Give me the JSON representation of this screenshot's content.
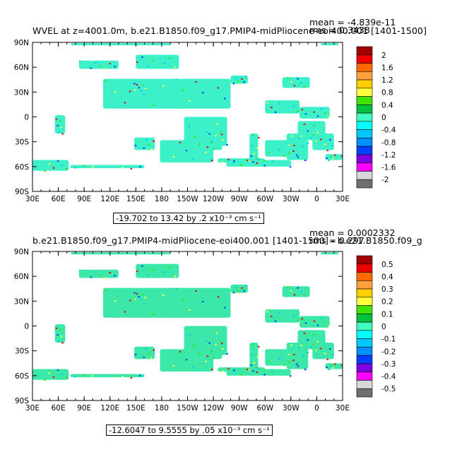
{
  "chart_data": [
    {
      "type": "heatmap",
      "title": "WVEL at z=4001.0m, b.e21.B1850.f09_g17.PMIP4-midPliocene-eoi400.001  [1401-1500]",
      "mean_label": "mean = -4.839e-11",
      "rms_label": "rms = 0.3438",
      "range_label": "-19.702 to 13.42 by .2 x10⁻³ cm s⁻¹",
      "lon_ticks": [
        "30E",
        "60E",
        "90E",
        "120E",
        "150E",
        "180",
        "150W",
        "120W",
        "90W",
        "60W",
        "30W",
        "0",
        "30E"
      ],
      "lat_ticks": [
        "90N",
        "60N",
        "30N",
        "0",
        "30S",
        "60S",
        "90S"
      ],
      "colorbar_labels": [
        "2",
        "1.6",
        "1.2",
        "0.8",
        "0.4",
        "0",
        "-0.4",
        "-0.8",
        "-1.2",
        "-1.6",
        "-2"
      ],
      "colorbar_colors": [
        "#a00000",
        "#ee0000",
        "#ff6a00",
        "#ffa040",
        "#ffd000",
        "#ffff40",
        "#40e000",
        "#00c040",
        "#40ffc0",
        "#00ffff",
        "#00c8ff",
        "#0090ff",
        "#0040ff",
        "#8000e0",
        "#ff00ff",
        "#d8d8d8",
        "#707070"
      ],
      "clim": [
        -2,
        2
      ]
    },
    {
      "type": "heatmap",
      "title": "b.e21.B1850.f09_g17.PMIP4-midPliocene-eoi400.001  [1401-1500] - b.e21.B1850.f09_g",
      "mean_label": "mean = 0.0002332",
      "rms_label": "rms = 0.297",
      "range_label": "-12.6047 to 9.5555 by .05 x10⁻³ cm s⁻¹",
      "lon_ticks": [
        "30E",
        "60E",
        "90E",
        "120E",
        "150E",
        "180",
        "150W",
        "120W",
        "90W",
        "60W",
        "30W",
        "0",
        "30E"
      ],
      "lat_ticks": [
        "90N",
        "60N",
        "30N",
        "0",
        "30S",
        "60S",
        "90S"
      ],
      "colorbar_labels": [
        "0.5",
        "0.4",
        "0.3",
        "0.2",
        "0.1",
        "0",
        "-0.1",
        "-0.2",
        "-0.3",
        "-0.4",
        "-0.5"
      ],
      "colorbar_colors": [
        "#a00000",
        "#ee0000",
        "#ff6a00",
        "#ffa040",
        "#ffd000",
        "#ffff40",
        "#40e000",
        "#00c040",
        "#40ffc0",
        "#00ffff",
        "#00c8ff",
        "#0090ff",
        "#0040ff",
        "#8000e0",
        "#ff00ff",
        "#d8d8d8",
        "#707070"
      ],
      "clim": [
        -0.5,
        0.5
      ]
    }
  ]
}
